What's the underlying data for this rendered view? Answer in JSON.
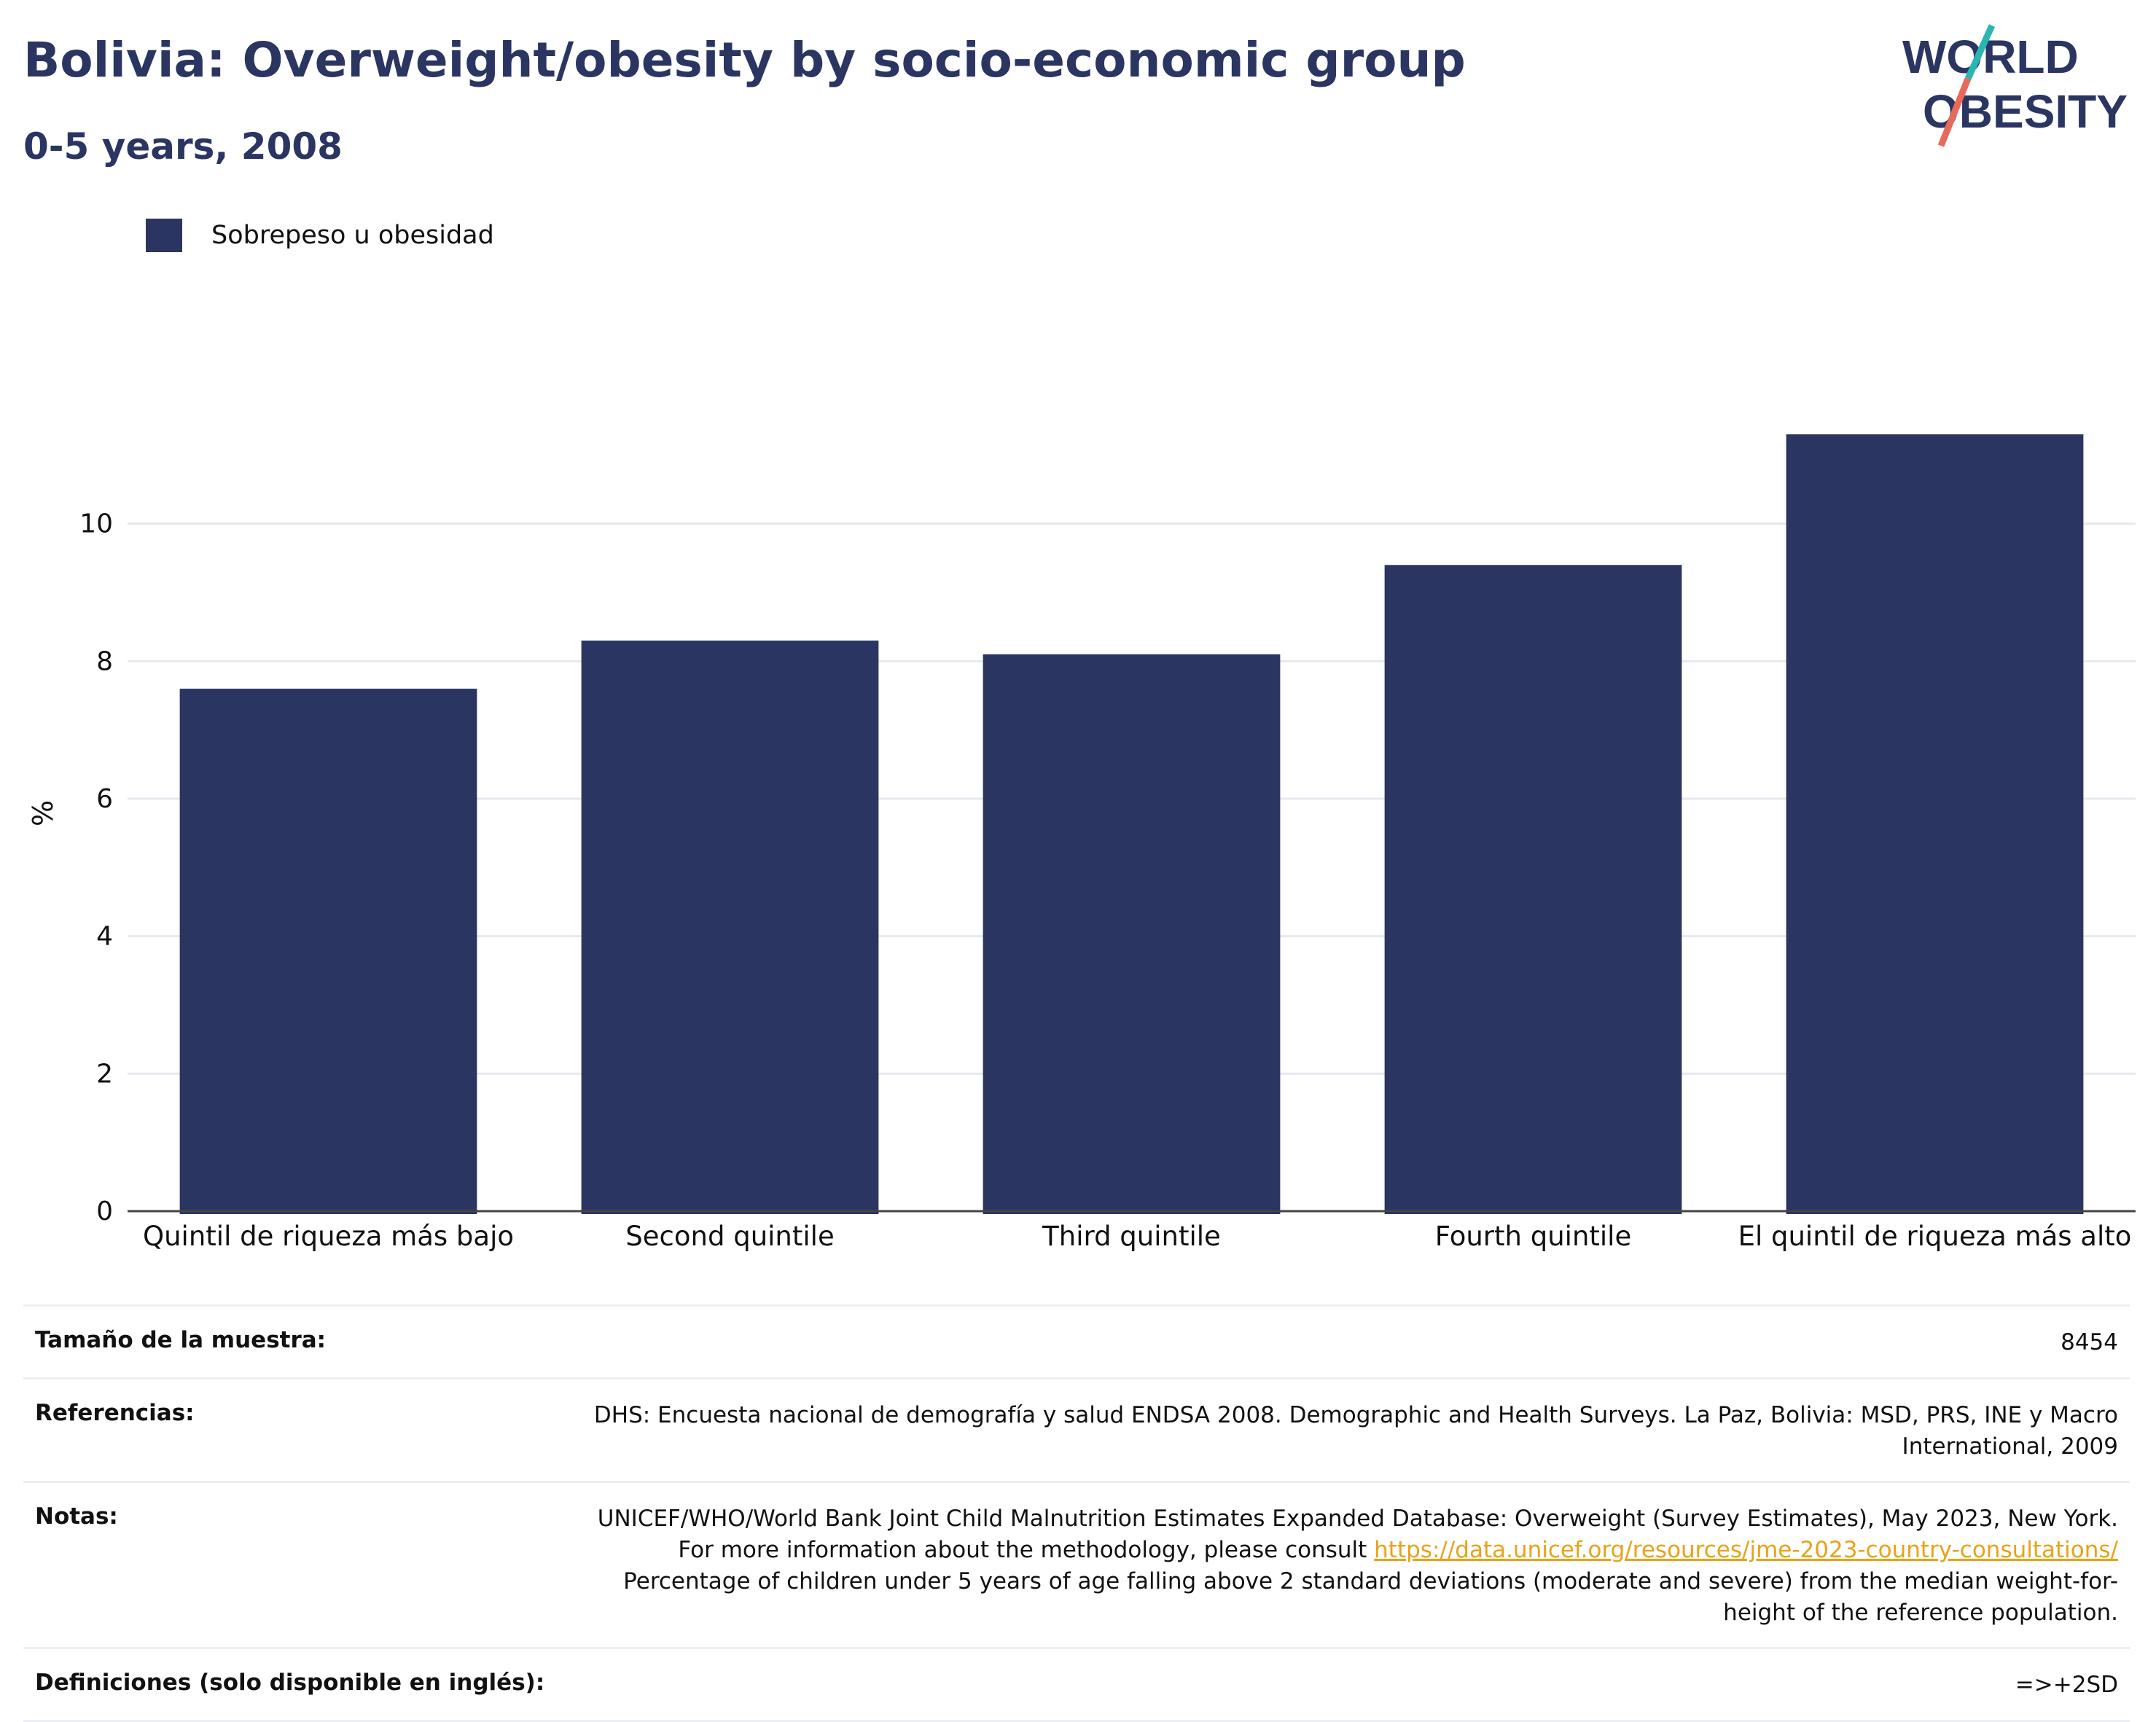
{
  "header": {
    "title": "Bolivia: Overweight/obesity by socio-economic group",
    "subtitle": "0-5 years, 2008"
  },
  "logo": {
    "line1": "WORLD",
    "line2": "OBESITY"
  },
  "chart_data": {
    "type": "bar",
    "categories": [
      "Quintil de riqueza más bajo",
      "Second quintile",
      "Third quintile",
      "Fourth quintile",
      "El quintil de riqueza más alto"
    ],
    "series": [
      {
        "name": "Sobrepeso u obesidad",
        "values": [
          7.6,
          8.3,
          8.1,
          9.4,
          11.3
        ],
        "color": "#2a3561"
      }
    ],
    "ylabel": "%",
    "ylim": [
      0,
      12
    ],
    "yticks": [
      0,
      2,
      4,
      6,
      8,
      10
    ],
    "grid": true,
    "legend_position": "top-left"
  },
  "footer": {
    "sample_label": "Tamaño de la muestra:",
    "sample_value": "8454",
    "references_label": "Referencias:",
    "references_value": "DHS: Encuesta nacional de demografía y salud ENDSA 2008. Demographic and Health Surveys. La Paz, Bolivia: MSD, PRS, INE y Macro International, 2009",
    "notes_label": "Notas:",
    "notes_text1": "UNICEF/WHO/World Bank Joint Child Malnutrition Estimates Expanded Database: Overweight (Survey Estimates), May 2023, New York. For more information about the methodology, please consult ",
    "notes_link": "https://data.unicef.org/resources/jme-2023-country-consultations/",
    "notes_text2": " Percentage of children under 5 years of age falling above 2 standard deviations (moderate and severe) from the median weight-for-height of the reference population.",
    "definitions_label": "Definiciones (solo disponible en inglés):",
    "definitions_value": "=>+2SD"
  }
}
